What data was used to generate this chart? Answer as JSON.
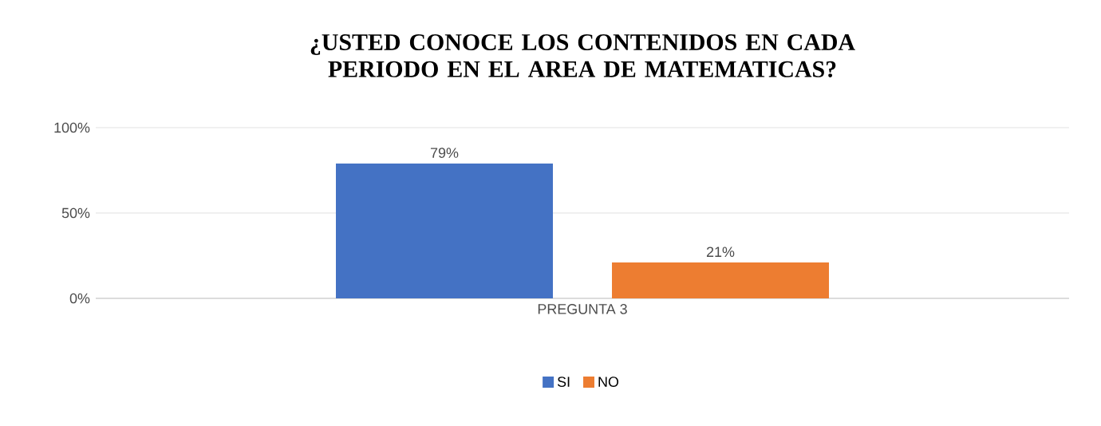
{
  "chart_data": {
    "type": "bar",
    "title": "¿USTED CONOCE  LOS CONTENIDOS EN CADA PERIODO  EN EL AREA DE MATEMATICAS?",
    "categories": [
      "PREGUNTA 3"
    ],
    "series": [
      {
        "name": "SI",
        "color": "#4472c4",
        "values": [
          79
        ],
        "value_labels": [
          "79%"
        ]
      },
      {
        "name": "NO",
        "color": "#ed7d31",
        "values": [
          21
        ],
        "value_labels": [
          "21%"
        ]
      }
    ],
    "ylim": [
      0,
      100
    ],
    "yticks": [
      {
        "value": 0,
        "label": "0%"
      },
      {
        "value": 50,
        "label": "50%"
      },
      {
        "value": 100,
        "label": "100%"
      }
    ],
    "grid": "y",
    "legend": "bottom"
  }
}
